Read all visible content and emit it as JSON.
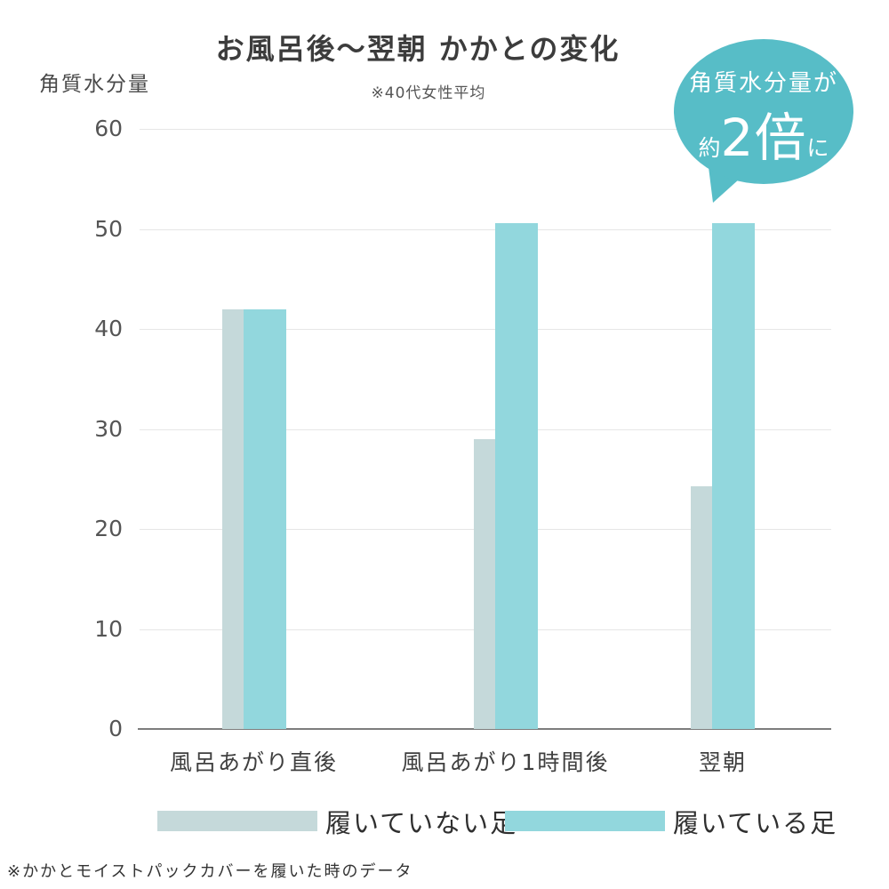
{
  "title": "お風呂後〜翌朝 かかとの変化",
  "subtitle": "※40代女性平均",
  "y_axis_title": "角質水分量",
  "footnote": "※かかとモイストパックカバーを履いた時のデータ",
  "bubble": {
    "line1": "角質水分量が",
    "line2_prefix": "約",
    "line2_big": "2倍",
    "line2_suffix": "に",
    "color": "#57bdc7"
  },
  "legend": [
    {
      "label": "履いていない足",
      "color": "#c5d9da"
    },
    {
      "label": "履いている足",
      "color": "#92d7dd"
    }
  ],
  "colors": {
    "bar_not_wearing": "#c5d9da",
    "bar_wearing": "#92d7dd",
    "gridline": "#e6e6e6",
    "axis_line": "#7d7d7d",
    "bubble": "#57bdc7"
  },
  "chart_data": {
    "type": "bar",
    "title": "お風呂後〜翌朝 かかとの変化",
    "subtitle": "※40代女性平均",
    "ylabel": "角質水分量",
    "xlabel": "",
    "categories": [
      "風呂あがり直後",
      "風呂あがり1時間後",
      "翌朝"
    ],
    "series": [
      {
        "name": "履いていない足",
        "color": "#c5d9da",
        "values": [
          42,
          29,
          24.3
        ]
      },
      {
        "name": "履いている足",
        "color": "#92d7dd",
        "values": [
          42,
          50.6,
          50.6
        ]
      }
    ],
    "ylim": [
      0,
      60
    ],
    "yticks": [
      0,
      10,
      20,
      30,
      40,
      50,
      60
    ],
    "grid": true,
    "legend_position": "bottom",
    "annotation": "角質水分量が約2倍に"
  }
}
